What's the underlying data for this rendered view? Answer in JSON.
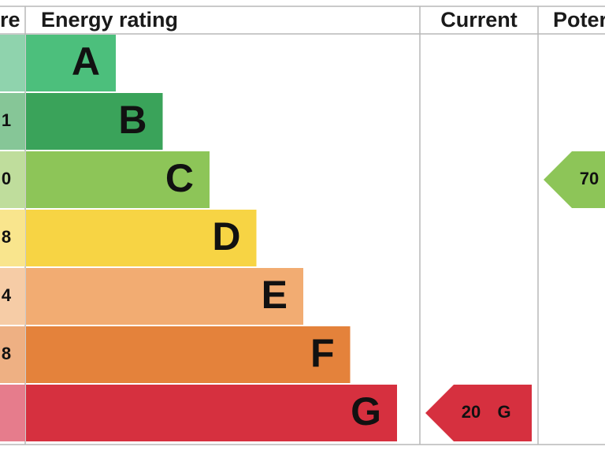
{
  "header": {
    "score_label": "re",
    "rating_label": "Energy rating",
    "current_label": "Current",
    "potential_label": "Poter"
  },
  "bands": [
    {
      "letter": "A",
      "color": "#4cbf7c",
      "tint": "#8fd3ad"
    },
    {
      "letter": "B",
      "range": "1",
      "color": "#3aa35a",
      "tint": "#86c697"
    },
    {
      "letter": "C",
      "range": "0",
      "color": "#8dc558",
      "tint": "#bfdd9c"
    },
    {
      "letter": "D",
      "range": "8",
      "color": "#f7d444",
      "tint": "#f9e58d"
    },
    {
      "letter": "E",
      "range": "4",
      "color": "#f2ac72",
      "tint": "#f6cca6"
    },
    {
      "letter": "F",
      "range": "8",
      "color": "#e4823b",
      "tint": "#eeb083"
    },
    {
      "letter": "G",
      "color": "#d6303f",
      "tint": "#e67c8c"
    }
  ],
  "current": {
    "value": 20,
    "band": "G"
  },
  "potential": {
    "value": 70,
    "band": "C"
  }
}
